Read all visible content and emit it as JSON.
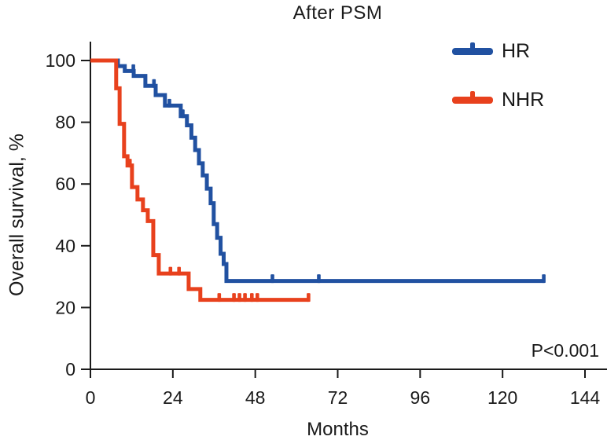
{
  "chart_data": {
    "type": "line",
    "subtype": "kaplan-meier-step",
    "title": "After PSM",
    "xlabel": "Months",
    "ylabel": "Overall survival, %",
    "annotation": "P<0.001",
    "xlim": [
      0,
      144
    ],
    "ylim": [
      0,
      100
    ],
    "x_ticks": [
      0,
      24,
      48,
      72,
      96,
      120,
      144
    ],
    "y_ticks": [
      0,
      20,
      40,
      60,
      80,
      100
    ],
    "grid": false,
    "legend_position": "upper right",
    "axis_color": "#1a1a1a",
    "series": [
      {
        "name": "HR",
        "color": "#2151a1",
        "start": [
          0,
          100
        ],
        "steps": [
          [
            8,
            98.2
          ],
          [
            10,
            96.6
          ],
          [
            12.6,
            95.0
          ],
          [
            16,
            91.8
          ],
          [
            19,
            88.8
          ],
          [
            21.7,
            85.4
          ],
          [
            26.3,
            82.0
          ],
          [
            28.1,
            79.0
          ],
          [
            29.4,
            75.0
          ],
          [
            30.5,
            71.0
          ],
          [
            31.6,
            66.7
          ],
          [
            32.7,
            62.8
          ],
          [
            33.9,
            58.5
          ],
          [
            35.0,
            53.8
          ],
          [
            35.9,
            47.0
          ],
          [
            36.9,
            42.6
          ],
          [
            37.9,
            37.4
          ],
          [
            38.8,
            34.1
          ],
          [
            39.6,
            28.6
          ]
        ],
        "end_month": 132,
        "final_percent": 28.6,
        "censor_marks_months": [
          12.5,
          18.5,
          23,
          26.9,
          53,
          66.5,
          132
        ]
      },
      {
        "name": "NHR",
        "color": "#e8411d",
        "start": [
          0,
          100
        ],
        "steps": [
          [
            7.5,
            91.0
          ],
          [
            8.5,
            79.5
          ],
          [
            9.8,
            69.0
          ],
          [
            10.8,
            66.0
          ],
          [
            12.1,
            59.0
          ],
          [
            13.7,
            55.0
          ],
          [
            15.3,
            51.5
          ],
          [
            16.7,
            48.0
          ],
          [
            18.3,
            37.0
          ],
          [
            19.9,
            31.0
          ],
          [
            28.6,
            26.0
          ],
          [
            32.0,
            22.5
          ]
        ],
        "end_month": 63.5,
        "final_percent": 22.5,
        "censor_marks_months": [
          11.5,
          23.3,
          25.8,
          37.5,
          41.8,
          43.4,
          45,
          47,
          48.6,
          63.5
        ]
      }
    ]
  }
}
